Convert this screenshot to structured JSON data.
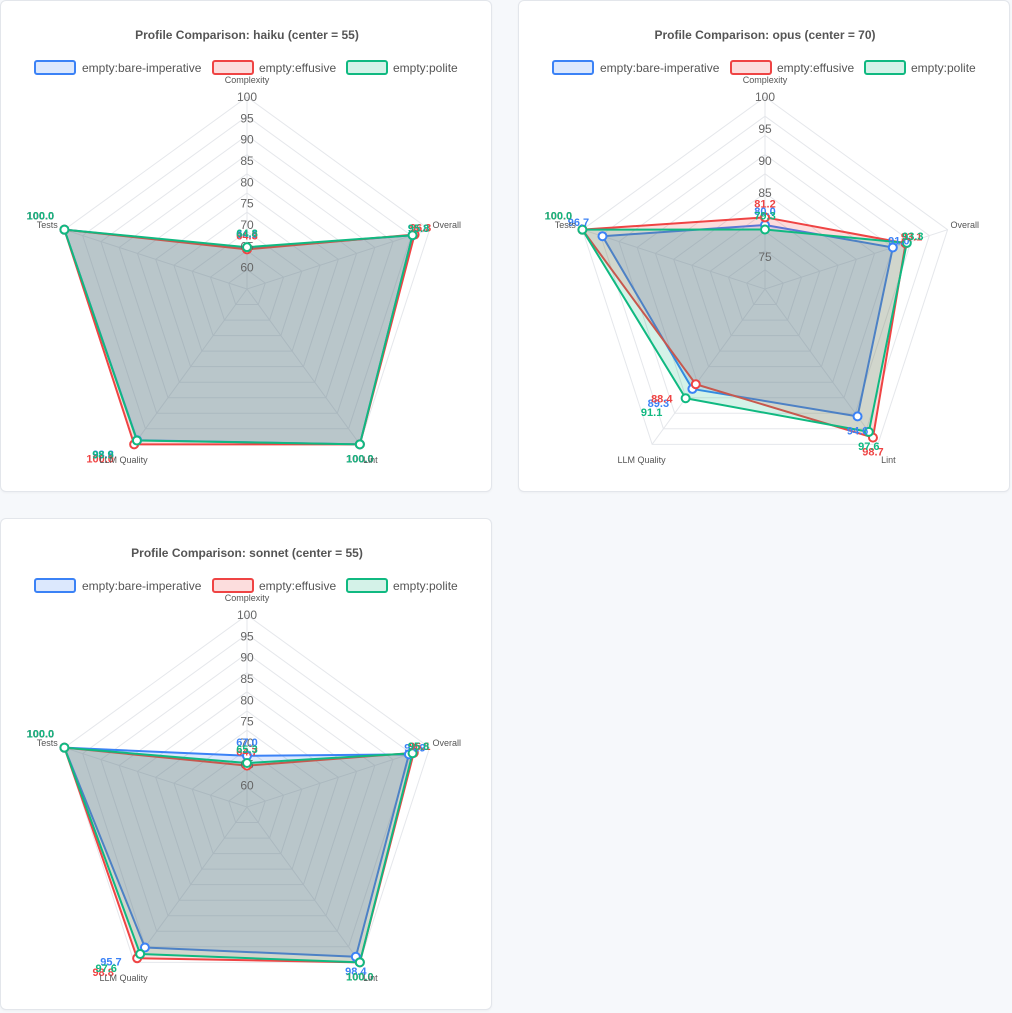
{
  "colors": {
    "series": [
      "#3b82f6",
      "#ef4444",
      "#10b981"
    ],
    "fills": [
      "rgba(59,130,246,0.18)",
      "rgba(239,68,68,0.18)",
      "rgba(16,185,129,0.18)"
    ],
    "grid": "#e5e7eb",
    "title": "#555555",
    "label": "#555555",
    "tick": "#666666"
  },
  "legend": [
    "empty:bare-imperative",
    "empty:effusive",
    "empty:polite"
  ],
  "chart_data": [
    {
      "type": "radar",
      "title": "Profile Comparison: haiku  (center = 55)",
      "axes": [
        "Complexity",
        "Overall",
        "Lint",
        "LLM Quality",
        "Tests"
      ],
      "range": [
        55,
        100
      ],
      "ticks": [
        "60",
        "65",
        "70",
        "75",
        "80",
        "85",
        "90",
        "95",
        "100"
      ],
      "tick_values": [
        60,
        65,
        70,
        75,
        80,
        85,
        90,
        95,
        100
      ],
      "grid": true,
      "legend_position": "top",
      "series": [
        {
          "name": "empty:bare-imperative",
          "values": [
            64.6,
            95.8,
            100.0,
            98.8,
            100.0
          ],
          "labels": [
            "64.6",
            "95.8",
            "100.0",
            "98.8",
            "100.0"
          ]
        },
        {
          "name": "empty:effusive",
          "values": [
            64.3,
            96.3,
            100.0,
            100.0,
            100.0
          ],
          "labels": [
            "64.3",
            "96.3",
            "100.0",
            "100.0",
            "100.0"
          ]
        },
        {
          "name": "empty:polite",
          "values": [
            64.8,
            95.8,
            100.0,
            98.9,
            100.0
          ],
          "labels": [
            "64.8",
            "95.8",
            "100.0",
            "98.9",
            "100.0"
          ]
        }
      ]
    },
    {
      "type": "radar",
      "title": "Profile Comparison: opus  (center = 70)",
      "axes": [
        "Complexity",
        "Overall",
        "Lint",
        "LLM Quality",
        "Tests"
      ],
      "range": [
        70,
        100
      ],
      "ticks": [
        "75",
        "85",
        "90",
        "95",
        "100"
      ],
      "tick_values": [
        75,
        85,
        90,
        95,
        100
      ],
      "grid": true,
      "legend_position": "top",
      "series": [
        {
          "name": "empty:bare-imperative",
          "values": [
            80.0,
            91.0,
            94.6,
            89.3,
            96.7
          ],
          "labels": [
            "80.0",
            "91.0",
            "94.6",
            "89.3",
            "96.7"
          ]
        },
        {
          "name": "empty:effusive",
          "values": [
            81.2,
            93.1,
            98.7,
            88.4,
            100.0
          ],
          "labels": [
            "81.2",
            "93.1",
            "98.7",
            "88.4",
            "100.0"
          ]
        },
        {
          "name": "empty:polite",
          "values": [
            79.3,
            93.3,
            97.6,
            91.1,
            100.0
          ],
          "labels": [
            "79.3",
            "93.3",
            "97.6",
            "91.1",
            "100.0"
          ]
        }
      ]
    },
    {
      "type": "radar",
      "title": "Profile Comparison: sonnet  (center = 55)",
      "axes": [
        "Complexity",
        "Overall",
        "Lint",
        "LLM Quality",
        "Tests"
      ],
      "range": [
        55,
        100
      ],
      "ticks": [
        "60",
        "65",
        "70",
        "75",
        "80",
        "85",
        "90",
        "95",
        "100"
      ],
      "tick_values": [
        60,
        65,
        70,
        75,
        80,
        85,
        90,
        95,
        100
      ],
      "grid": true,
      "legend_position": "top",
      "series": [
        {
          "name": "empty:bare-imperative",
          "values": [
            67.0,
            94.9,
            98.4,
            95.7,
            100.0
          ],
          "labels": [
            "67.0",
            "94.9",
            "98.4",
            "95.7",
            "100.0"
          ]
        },
        {
          "name": "empty:effusive",
          "values": [
            64.7,
            96.1,
            100.0,
            98.8,
            100.0
          ],
          "labels": [
            "64.7",
            "96.1",
            "100.0",
            "98.8",
            "100.0"
          ]
        },
        {
          "name": "empty:polite",
          "values": [
            65.3,
            95.8,
            100.0,
            97.6,
            100.0
          ],
          "labels": [
            "65.3",
            "95.8",
            "100.0",
            "97.6",
            "100.0"
          ]
        }
      ]
    }
  ]
}
